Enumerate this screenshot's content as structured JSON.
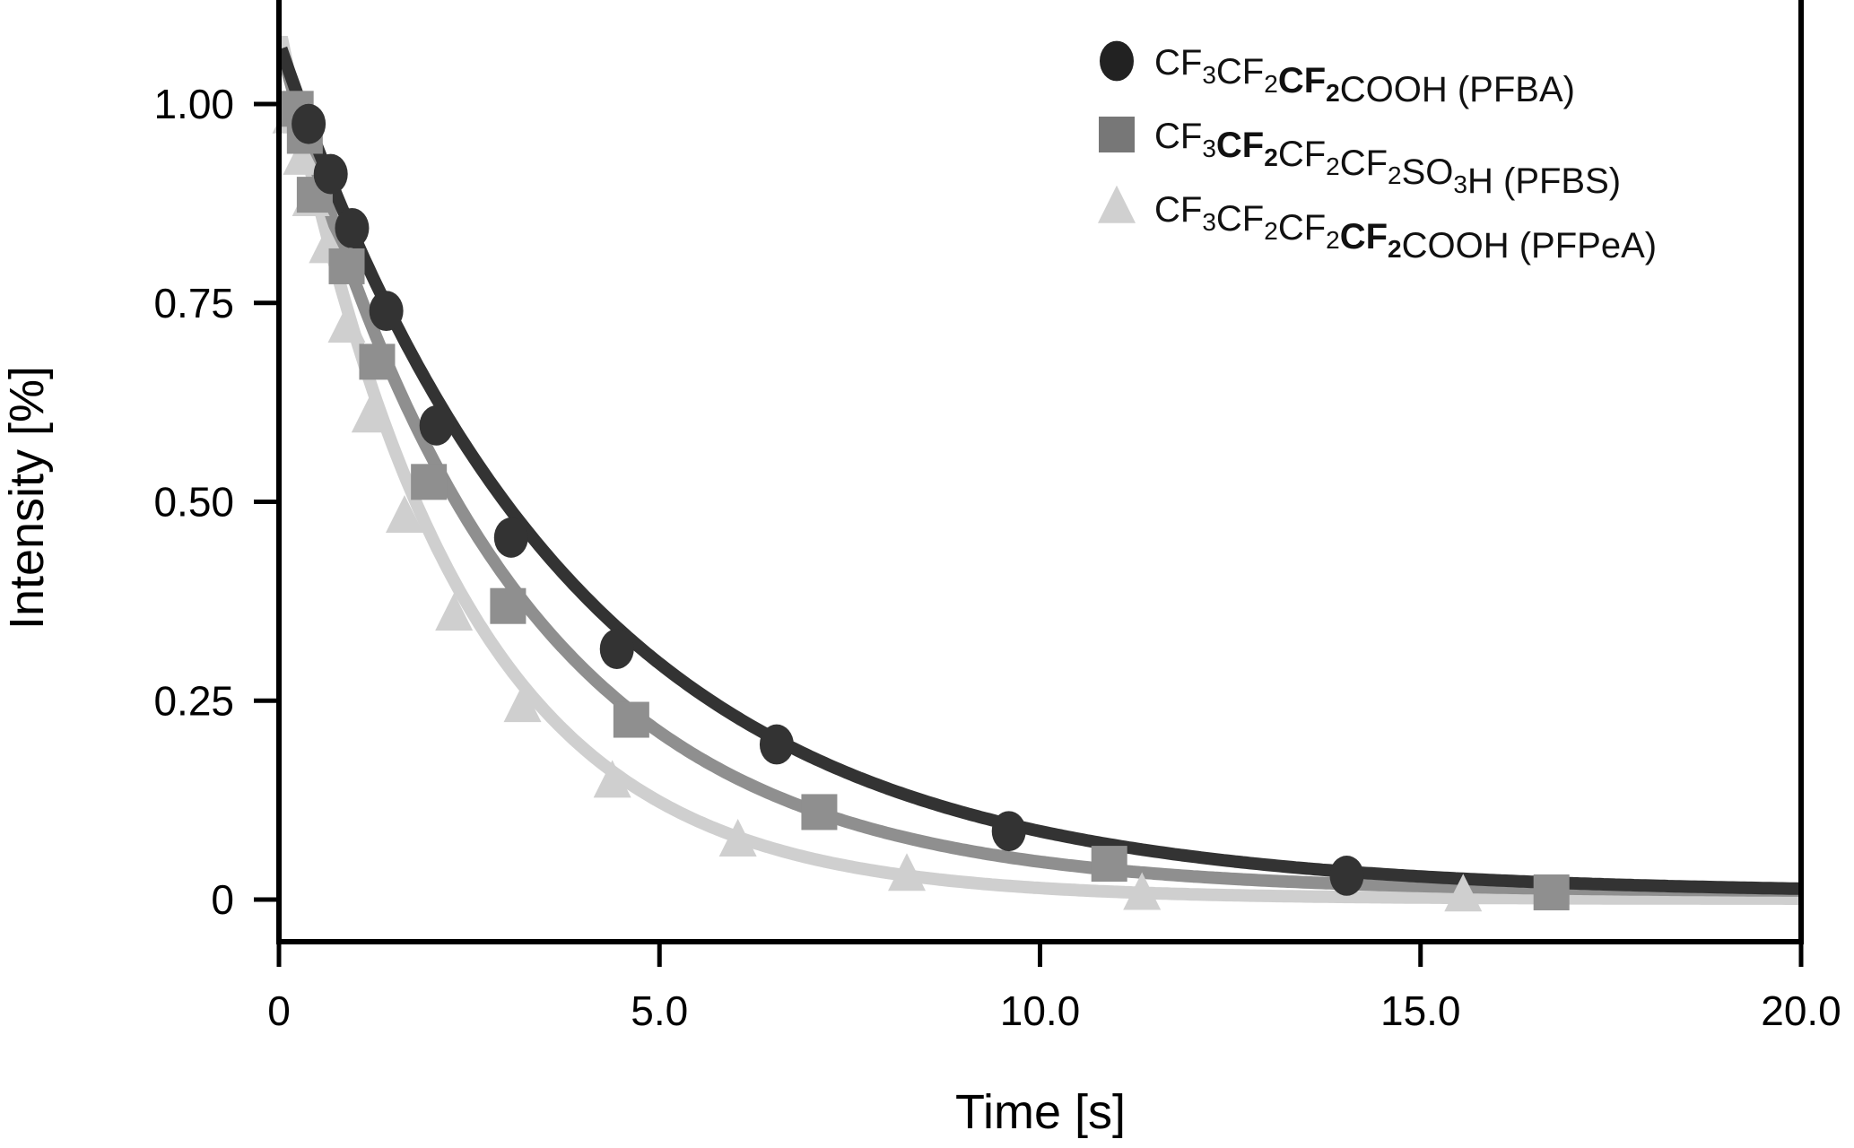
{
  "chart_data": {
    "type": "scatter",
    "title": "",
    "xlabel": "Time [s]",
    "ylabel": "Intensity [%]",
    "xlim": [
      0,
      20
    ],
    "ylim": [
      -0.05,
      1.12
    ],
    "xticks": [
      0,
      5,
      10,
      15,
      20
    ],
    "xtick_labels": [
      "0",
      "5.0",
      "10.0",
      "15.0",
      "20.0"
    ],
    "yticks": [
      0,
      0.25,
      0.5,
      0.75,
      1.0
    ],
    "ytick_labels": [
      "0",
      "0.25",
      "0.50",
      "0.75",
      "1.00"
    ],
    "grid": false,
    "legend_position": "top-right",
    "series": [
      {
        "name": "CF3CF2CF2COOH (PFBA)",
        "legend_parts": [
          {
            "t": "CF",
            "s": "normal"
          },
          {
            "t": "3",
            "s": "sub"
          },
          {
            "t": "CF",
            "s": "normal"
          },
          {
            "t": "2",
            "s": "sub"
          },
          {
            "t": "CF",
            "s": "bold"
          },
          {
            "t": "2",
            "s": "boldsub"
          },
          {
            "t": "COOH (PFBA)",
            "s": "normal"
          }
        ],
        "marker": "circle",
        "color": "#333333",
        "legend_color": "#222222",
        "x": [
          0.39,
          0.68,
          0.96,
          1.41,
          2.07,
          3.05,
          4.44,
          6.54,
          9.59,
          14.03
        ],
        "y": [
          0.975,
          0.912,
          0.844,
          0.74,
          0.596,
          0.455,
          0.315,
          0.195,
          0.086,
          0.03
        ],
        "fit": {
          "model": "A*exp(-k*t)+c",
          "A": 1.07,
          "k": 0.262,
          "c": 0.008
        }
      },
      {
        "name": "CF3CF2CF2CF2SO3H (PFBS)",
        "legend_parts": [
          {
            "t": "CF",
            "s": "normal"
          },
          {
            "t": "3",
            "s": "sub"
          },
          {
            "t": "CF",
            "s": "bold"
          },
          {
            "t": "2",
            "s": "boldsub"
          },
          {
            "t": "CF",
            "s": "normal"
          },
          {
            "t": "2",
            "s": "sub"
          },
          {
            "t": "CF",
            "s": "normal"
          },
          {
            "t": "2",
            "s": "sub"
          },
          {
            "t": "SO",
            "s": "normal"
          },
          {
            "t": "3",
            "s": "sub"
          },
          {
            "t": "H (PFBS)",
            "s": "normal"
          }
        ],
        "marker": "square",
        "color": "#8f8f8f",
        "legend_color": "#777777",
        "x": [
          0.22,
          0.34,
          0.47,
          0.89,
          1.29,
          1.97,
          3.01,
          4.63,
          7.1,
          10.91,
          16.72
        ],
        "y": [
          0.994,
          0.96,
          0.886,
          0.796,
          0.676,
          0.525,
          0.369,
          0.226,
          0.11,
          0.045,
          0.009
        ],
        "fit": {
          "model": "A*exp(-k*t)+c",
          "A": 1.07,
          "k": 0.335,
          "c": 0.01
        }
      },
      {
        "name": "CF3CF2CF2CF2COOH (PFPeA)",
        "legend_parts": [
          {
            "t": "CF",
            "s": "normal"
          },
          {
            "t": "3",
            "s": "sub"
          },
          {
            "t": "CF",
            "s": "normal"
          },
          {
            "t": "2",
            "s": "sub"
          },
          {
            "t": "CF",
            "s": "normal"
          },
          {
            "t": "2",
            "s": "sub"
          },
          {
            "t": "CF",
            "s": "bold"
          },
          {
            "t": "2",
            "s": "boldsub"
          },
          {
            "t": "COOH (PFPeA)",
            "s": "normal"
          }
        ],
        "marker": "triangle",
        "color": "#cfcfcf",
        "legend_color": "#d0d0d0",
        "x": [
          0.16,
          0.3,
          0.42,
          0.64,
          0.89,
          1.2,
          1.65,
          2.3,
          3.2,
          4.38,
          6.03,
          8.25,
          11.34,
          15.56
        ],
        "y": [
          0.982,
          0.93,
          0.878,
          0.819,
          0.719,
          0.606,
          0.48,
          0.357,
          0.242,
          0.147,
          0.073,
          0.03,
          0.006,
          0.004
        ],
        "fit": {
          "model": "A*exp(-k*t)+c",
          "A": 1.1,
          "k": 0.44,
          "c": 0.001
        }
      }
    ]
  }
}
